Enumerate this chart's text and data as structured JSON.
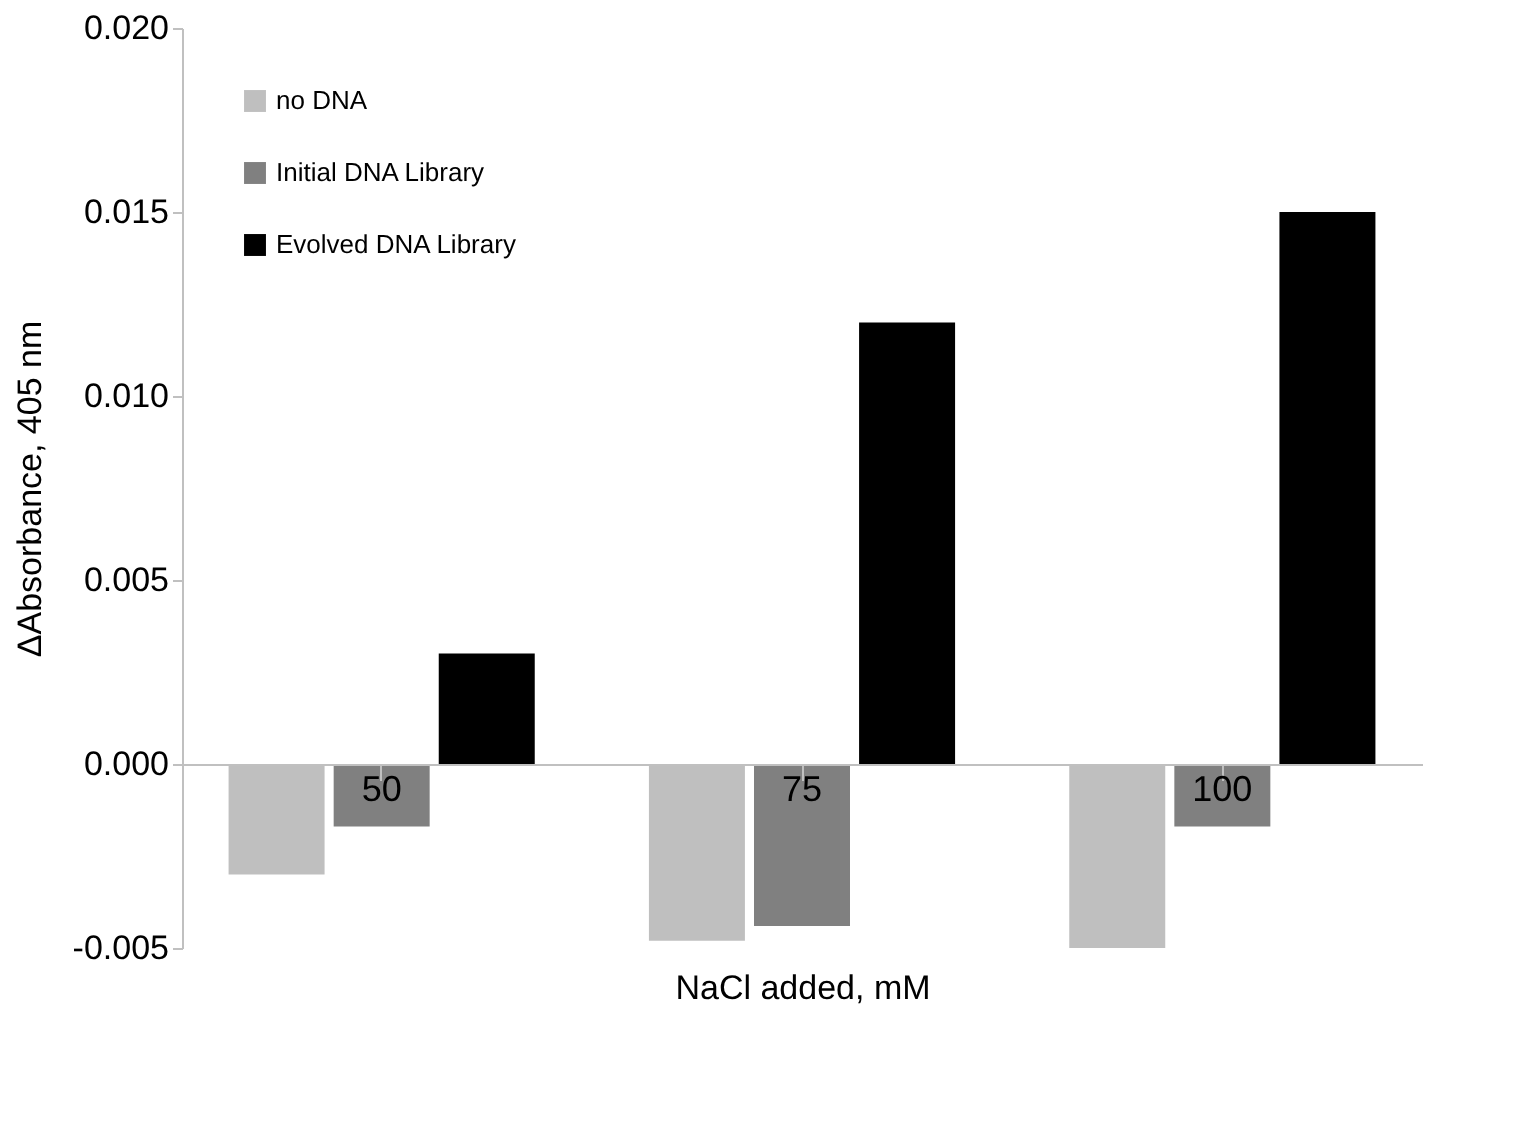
{
  "chart_data": {
    "type": "bar",
    "xlabel": "NaCl added, mM",
    "ylabel": "ΔAbsorbance, 405 nm",
    "categories": [
      "50",
      "75",
      "100"
    ],
    "series": [
      {
        "name": "no DNA",
        "color": "#bfbfbf",
        "values": [
          -0.003,
          -0.0048,
          -0.005
        ]
      },
      {
        "name": "Initial DNA Library",
        "color": "#808080",
        "values": [
          -0.0017,
          -0.0044,
          -0.0017
        ]
      },
      {
        "name": "Evolved DNA Library",
        "color": "#000000",
        "values": [
          0.003,
          0.012,
          0.015
        ]
      }
    ],
    "ylim": [
      -0.005,
      0.02
    ],
    "yticks": [
      {
        "value": -0.005,
        "label": "-0.005"
      },
      {
        "value": 0,
        "label": "0.000"
      },
      {
        "value": 0.005,
        "label": "0.005"
      },
      {
        "value": 0.01,
        "label": "0.010"
      },
      {
        "value": 0.015,
        "label": "0.015"
      },
      {
        "value": 0.02,
        "label": "0.020"
      }
    ],
    "grid": false,
    "legend": "top left"
  }
}
